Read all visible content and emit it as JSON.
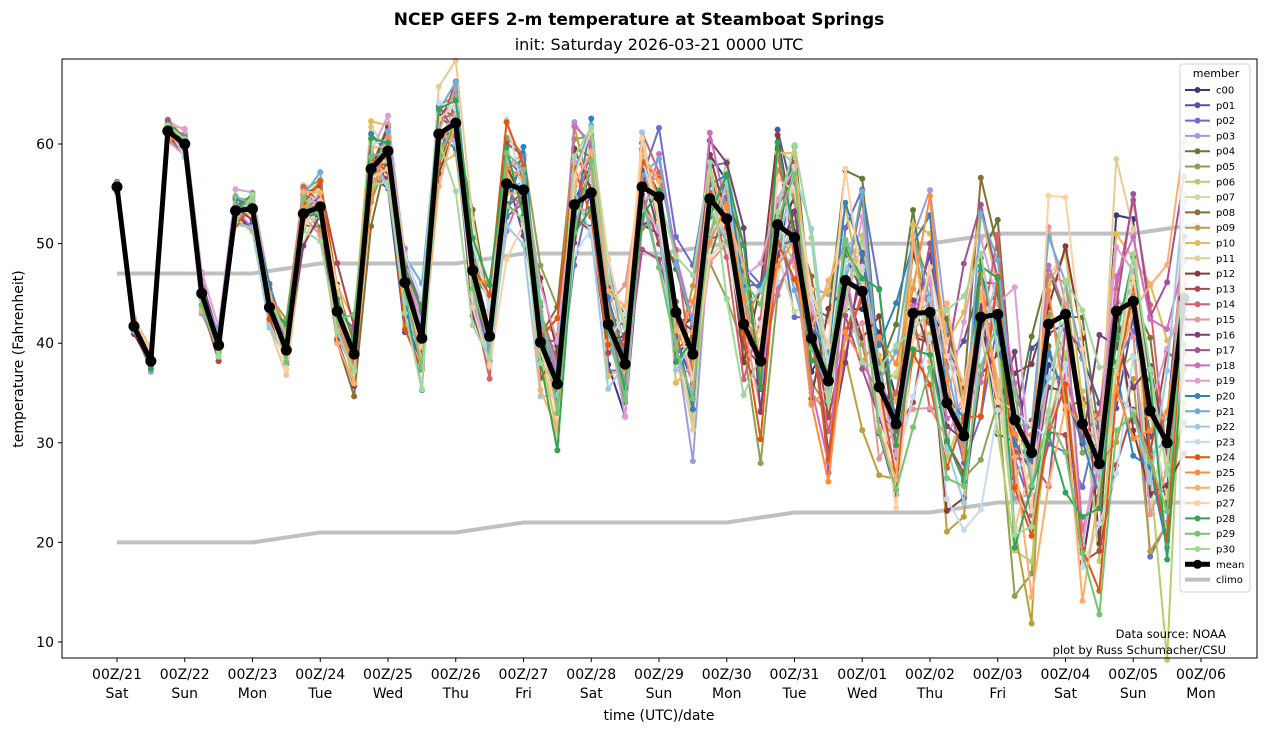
{
  "chart_data": {
    "type": "line",
    "title": "NCEP GEFS 2-m temperature at Steamboat Springs",
    "subtitle": "init: Saturday 2026-03-21 0000 UTC",
    "xlabel": "time (UTC)/date",
    "ylabel": "temperature (Fahrenheit)",
    "ylim": [
      8.5,
      68.5
    ],
    "xlim_days": [
      -0.8,
      16.8
    ],
    "time_step_hours": 6,
    "y_ticks": [
      10,
      20,
      30,
      40,
      50,
      60
    ],
    "x_ticks": [
      {
        "day": 0,
        "line1": "00Z/21",
        "line2": "Sat"
      },
      {
        "day": 1,
        "line1": "00Z/22",
        "line2": "Sun"
      },
      {
        "day": 2,
        "line1": "00Z/23",
        "line2": "Mon"
      },
      {
        "day": 3,
        "line1": "00Z/24",
        "line2": "Tue"
      },
      {
        "day": 4,
        "line1": "00Z/25",
        "line2": "Wed"
      },
      {
        "day": 5,
        "line1": "00Z/26",
        "line2": "Thu"
      },
      {
        "day": 6,
        "line1": "00Z/27",
        "line2": "Fri"
      },
      {
        "day": 7,
        "line1": "00Z/28",
        "line2": "Sat"
      },
      {
        "day": 8,
        "line1": "00Z/29",
        "line2": "Sun"
      },
      {
        "day": 9,
        "line1": "00Z/30",
        "line2": "Mon"
      },
      {
        "day": 10,
        "line1": "00Z/31",
        "line2": "Tue"
      },
      {
        "day": 11,
        "line1": "00Z/01",
        "line2": "Wed"
      },
      {
        "day": 12,
        "line1": "00Z/02",
        "line2": "Thu"
      },
      {
        "day": 13,
        "line1": "00Z/03",
        "line2": "Fri"
      },
      {
        "day": 14,
        "line1": "00Z/04",
        "line2": "Sat"
      },
      {
        "day": 15,
        "line1": "00Z/05",
        "line2": "Sun"
      },
      {
        "day": 16,
        "line1": "00Z/06",
        "line2": "Mon"
      }
    ],
    "grid": false,
    "legend": {
      "title": "member",
      "position": "top-right"
    },
    "members": [
      {
        "name": "c00",
        "color": "#393b79"
      },
      {
        "name": "p01",
        "color": "#5254a3"
      },
      {
        "name": "p02",
        "color": "#6b6ecf"
      },
      {
        "name": "p03",
        "color": "#9c9ede"
      },
      {
        "name": "p04",
        "color": "#637939"
      },
      {
        "name": "p05",
        "color": "#8ca252"
      },
      {
        "name": "p06",
        "color": "#b5cf6b"
      },
      {
        "name": "p07",
        "color": "#cedb9c"
      },
      {
        "name": "p08",
        "color": "#8c6d31"
      },
      {
        "name": "p09",
        "color": "#bd9e39"
      },
      {
        "name": "p10",
        "color": "#e7ba52"
      },
      {
        "name": "p11",
        "color": "#e7cb94"
      },
      {
        "name": "p12",
        "color": "#843c39"
      },
      {
        "name": "p13",
        "color": "#ad494a"
      },
      {
        "name": "p14",
        "color": "#d6616b"
      },
      {
        "name": "p15",
        "color": "#e7969c"
      },
      {
        "name": "p16",
        "color": "#7b4173"
      },
      {
        "name": "p17",
        "color": "#a55194"
      },
      {
        "name": "p18",
        "color": "#ce6dbd"
      },
      {
        "name": "p19",
        "color": "#de9ed6"
      },
      {
        "name": "p20",
        "color": "#3182bd"
      },
      {
        "name": "p21",
        "color": "#6baed6"
      },
      {
        "name": "p22",
        "color": "#9ecae1"
      },
      {
        "name": "p23",
        "color": "#c6dbef"
      },
      {
        "name": "p24",
        "color": "#e6550d"
      },
      {
        "name": "p25",
        "color": "#fd8d3c"
      },
      {
        "name": "p26",
        "color": "#fdae6b"
      },
      {
        "name": "p27",
        "color": "#fdd0a2"
      },
      {
        "name": "p28",
        "color": "#31a354"
      },
      {
        "name": "p29",
        "color": "#74c476"
      },
      {
        "name": "p30",
        "color": "#a1d99b"
      }
    ],
    "mean": {
      "name": "mean",
      "color": "#000000",
      "values": [
        55.7,
        41.7,
        38.2,
        61.3,
        60.0,
        45.0,
        39.8,
        53.3,
        53.5,
        43.6,
        39.3,
        53.0,
        53.7,
        43.2,
        38.9,
        57.5,
        59.3,
        46.1,
        40.5,
        61.0,
        62.1,
        47.3,
        40.7,
        56.0,
        55.4,
        40.1,
        35.9,
        53.9,
        55.1,
        41.9,
        37.9,
        55.7,
        54.7,
        43.1,
        38.9,
        54.5,
        52.5,
        41.9,
        38.2,
        51.9,
        50.6,
        40.5,
        36.2,
        46.3,
        45.2,
        35.6,
        31.9,
        43.0,
        43.1,
        34.0,
        30.7,
        42.6,
        42.9,
        32.3,
        29.0,
        41.9,
        42.9,
        31.9,
        27.9,
        43.2,
        44.2,
        33.2,
        30.0,
        44.5
      ]
    },
    "climo": {
      "name": "climo",
      "color": "#c0c0c0",
      "days": [
        0,
        1,
        2,
        3,
        4,
        5,
        6,
        7,
        8,
        9,
        10,
        11,
        12,
        13,
        14,
        15,
        16
      ],
      "high": [
        47,
        47,
        47,
        48,
        48,
        48,
        49,
        49,
        49,
        50,
        50,
        50,
        50,
        51,
        51,
        51,
        52
      ],
      "low": [
        20,
        20,
        20,
        21,
        21,
        21,
        22,
        22,
        22,
        22,
        23,
        23,
        23,
        24,
        24,
        24,
        24
      ]
    },
    "annotations": [
      "Data source: NOAA",
      "plot by Russ Schumacher/CSU"
    ]
  }
}
